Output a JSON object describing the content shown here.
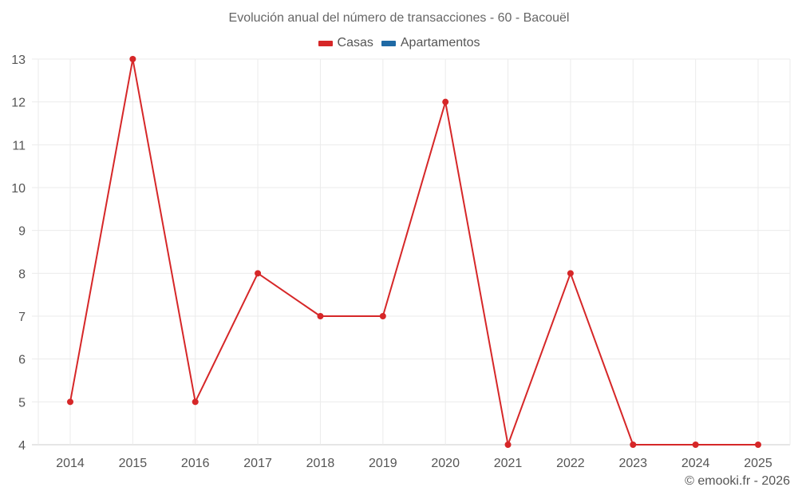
{
  "title": "Evolución anual del número de transacciones - 60 - Bacouël",
  "legend": [
    {
      "label": "Casas",
      "color": "#d62728"
    },
    {
      "label": "Apartamentos",
      "color": "#1f6aa5"
    }
  ],
  "credit": "© emooki.fr - 2026",
  "chart_data": {
    "type": "line",
    "title": "Evolución anual del número de transacciones - 60 - Bacouël",
    "xlabel": "",
    "ylabel": "",
    "categories": [
      "2014",
      "2015",
      "2016",
      "2017",
      "2018",
      "2019",
      "2020",
      "2021",
      "2022",
      "2023",
      "2024",
      "2025"
    ],
    "series": [
      {
        "name": "Casas",
        "color": "#d62728",
        "values": [
          5,
          13,
          5,
          8,
          7,
          7,
          12,
          4,
          8,
          4,
          4,
          4
        ]
      },
      {
        "name": "Apartamentos",
        "color": "#1f6aa5",
        "values": []
      }
    ],
    "yticks": [
      4,
      5,
      6,
      7,
      8,
      9,
      10,
      11,
      12,
      13
    ],
    "ylim": [
      4,
      13
    ],
    "grid": true,
    "legend_position": "top"
  }
}
